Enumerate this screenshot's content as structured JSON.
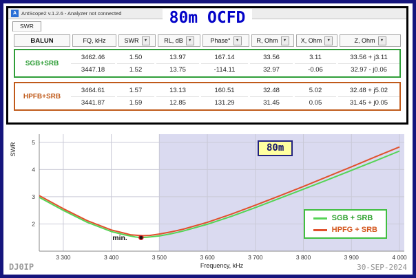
{
  "window": {
    "title": "AntScope2 v.1.2.6 - Analyzer not connected",
    "page_title": "80m OCFD",
    "tab": "SWR"
  },
  "table": {
    "headers": [
      "BALUN",
      "FQ, kHz",
      "SWR",
      "RL, dB",
      "Phase°",
      "R, Ohm",
      "X, Ohm",
      "Z, Ohm"
    ],
    "sortable": [
      false,
      false,
      true,
      true,
      true,
      true,
      true,
      true
    ],
    "groups": [
      {
        "label": "SGB+SRB",
        "color": "#2f9e38",
        "rows": [
          [
            "3462.46",
            "1.50",
            "13.97",
            "167.14",
            "33.56",
            "3.11",
            "33.56 + j3.11"
          ],
          [
            "3447.18",
            "1.52",
            "13.75",
            "-114.11",
            "32.97",
            "-0.06",
            "32.97 - j0.06"
          ]
        ]
      },
      {
        "label": "HPFB+SRB",
        "color": "#c05a1a",
        "rows": [
          [
            "3464.61",
            "1.57",
            "13.13",
            "160.51",
            "32.48",
            "5.02",
            "32.48 + j5.02"
          ],
          [
            "3441.87",
            "1.59",
            "12.85",
            "131.29",
            "31.45",
            "0.05",
            "31.45 + j0.05"
          ]
        ]
      }
    ]
  },
  "chart_data": {
    "type": "line",
    "title": "",
    "xlabel": "Frequency, kHz",
    "ylabel": "SWR",
    "xlim": [
      3250,
      4010
    ],
    "ylim": [
      1.0,
      5.3
    ],
    "xticks": [
      3300,
      3400,
      3500,
      3600,
      3700,
      3800,
      3900,
      4000
    ],
    "xtick_labels": [
      "3 300",
      "3 400",
      "3 500",
      "3 600",
      "3 700",
      "3 800",
      "3 900",
      "4 000"
    ],
    "yticks": [
      2,
      3,
      4,
      5
    ],
    "grid": true,
    "band_region": {
      "from": 3500,
      "to": 4010,
      "label": "80m",
      "fill": "#dadaf0"
    },
    "legend_position": "bottom-right",
    "series": [
      {
        "name": "SGB + SRB",
        "color": "#55d455",
        "x": [
          3250,
          3300,
          3350,
          3400,
          3425,
          3450,
          3462,
          3475,
          3500,
          3525,
          3550,
          3600,
          3650,
          3700,
          3750,
          3800,
          3850,
          3900,
          3950,
          4000
        ],
        "y": [
          2.98,
          2.5,
          2.06,
          1.72,
          1.61,
          1.52,
          1.5,
          1.51,
          1.56,
          1.64,
          1.74,
          1.99,
          2.28,
          2.6,
          2.94,
          3.28,
          3.62,
          3.97,
          4.32,
          4.68
        ]
      },
      {
        "name": "HPFG + SRB",
        "color": "#e0512d",
        "x": [
          3250,
          3300,
          3350,
          3400,
          3425,
          3441,
          3465,
          3480,
          3500,
          3525,
          3550,
          3600,
          3650,
          3700,
          3750,
          3800,
          3850,
          3900,
          3950,
          4000
        ],
        "y": [
          3.04,
          2.56,
          2.12,
          1.78,
          1.67,
          1.6,
          1.57,
          1.58,
          1.63,
          1.71,
          1.81,
          2.06,
          2.36,
          2.69,
          3.03,
          3.38,
          3.74,
          4.1,
          4.47,
          4.83
        ]
      }
    ],
    "min_marker": {
      "x": 3462,
      "y": 1.5,
      "label": "min."
    }
  },
  "footer": {
    "left": "DJ0IP",
    "right": "30-SEP-2024"
  },
  "colors": {
    "frame_navy": "#15157d",
    "title_blue": "#0404c8",
    "green": "#2f9e38",
    "orange": "#c05a1a",
    "band_fill": "#dadaf0",
    "legend_border": "#3fbf3f"
  }
}
